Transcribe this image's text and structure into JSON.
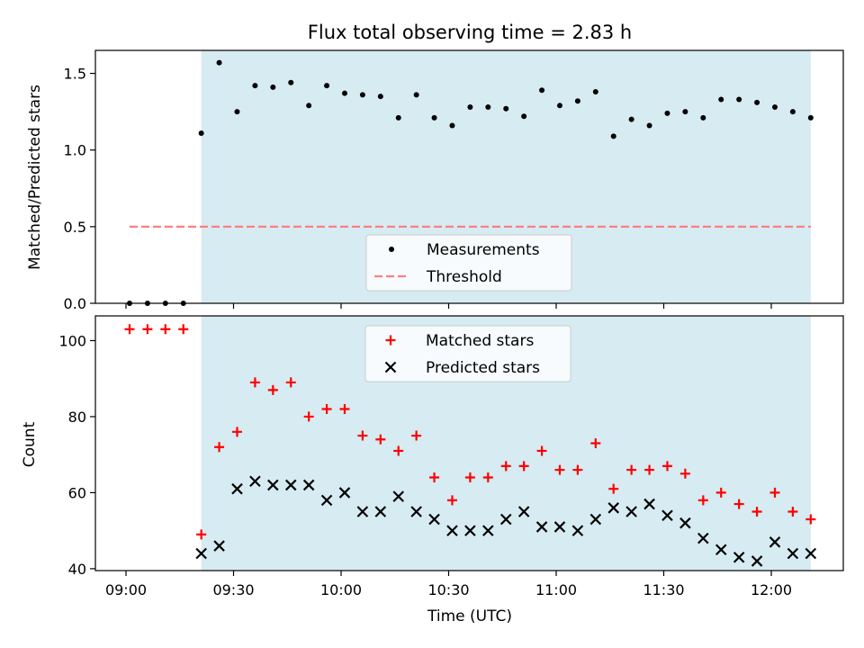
{
  "chart_data": [
    {
      "type": "scatter",
      "title": "Flux total observing time = 2.83 h",
      "xlabel": "",
      "ylabel": "Matched/Predicted stars",
      "ylim": [
        0.0,
        1.65
      ],
      "yticks": [
        "0.0",
        "0.5",
        "1.0",
        "1.5"
      ],
      "threshold": 0.5,
      "shaded_region_x": [
        "09:21",
        "12:11"
      ],
      "shaded_color": "#add8e6",
      "legend": {
        "placement": "lower-center",
        "entries": [
          "Measurements",
          "Threshold"
        ]
      },
      "series": [
        {
          "name": "Measurements",
          "color": "#000000",
          "x": [
            "09:01",
            "09:06",
            "09:11",
            "09:16",
            "09:21",
            "09:26",
            "09:31",
            "09:36",
            "09:41",
            "09:46",
            "09:51",
            "09:56",
            "10:01",
            "10:06",
            "10:11",
            "10:16",
            "10:21",
            "10:26",
            "10:31",
            "10:36",
            "10:41",
            "10:46",
            "10:51",
            "10:56",
            "11:01",
            "11:06",
            "11:11",
            "11:16",
            "11:21",
            "11:26",
            "11:31",
            "11:36",
            "11:41",
            "11:46",
            "11:51",
            "11:56",
            "12:01",
            "12:06",
            "12:11"
          ],
          "values": [
            0,
            0,
            0,
            0,
            1.11,
            1.57,
            1.25,
            1.42,
            1.41,
            1.44,
            1.29,
            1.42,
            1.37,
            1.36,
            1.35,
            1.21,
            1.36,
            1.21,
            1.16,
            1.28,
            1.28,
            1.27,
            1.22,
            1.39,
            1.29,
            1.32,
            1.38,
            1.09,
            1.2,
            1.16,
            1.24,
            1.25,
            1.21,
            1.33,
            1.33,
            1.31,
            1.28,
            1.25,
            1.21
          ]
        },
        {
          "name": "Threshold",
          "color": "#ff7f7f",
          "x": [
            "09:01",
            "12:11"
          ],
          "values": [
            0.5,
            0.5
          ]
        }
      ]
    },
    {
      "type": "scatter",
      "xlabel": "Time (UTC)",
      "ylabel": "Count",
      "ylim": [
        39.5,
        106.5
      ],
      "yticks": [
        "40",
        "60",
        "80",
        "100"
      ],
      "xticks": [
        "09:00",
        "09:30",
        "10:00",
        "10:30",
        "11:00",
        "11:30",
        "12:00"
      ],
      "shaded_region_x": [
        "09:21",
        "12:11"
      ],
      "shaded_color": "#add8e6",
      "legend": {
        "placement": "upper-center",
        "entries": [
          "Matched stars",
          "Predicted stars"
        ]
      },
      "series": [
        {
          "name": "Matched stars",
          "color": "#ff0000",
          "marker": "+",
          "x": [
            "09:01",
            "09:06",
            "09:11",
            "09:16",
            "09:21",
            "09:26",
            "09:31",
            "09:36",
            "09:41",
            "09:46",
            "09:51",
            "09:56",
            "10:01",
            "10:06",
            "10:11",
            "10:16",
            "10:21",
            "10:26",
            "10:31",
            "10:36",
            "10:41",
            "10:46",
            "10:51",
            "10:56",
            "11:01",
            "11:06",
            "11:11",
            "11:16",
            "11:21",
            "11:26",
            "11:31",
            "11:36",
            "11:41",
            "11:46",
            "11:51",
            "11:56",
            "12:01",
            "12:06",
            "12:11"
          ],
          "values": [
            103,
            103,
            103,
            103,
            49,
            72,
            76,
            89,
            87,
            89,
            80,
            82,
            82,
            75,
            74,
            71,
            75,
            64,
            58,
            64,
            64,
            67,
            67,
            71,
            66,
            66,
            73,
            61,
            66,
            66,
            67,
            65,
            58,
            60,
            57,
            55,
            60,
            55,
            53
          ]
        },
        {
          "name": "Predicted stars",
          "color": "#000000",
          "marker": "x",
          "x": [
            "09:21",
            "09:26",
            "09:31",
            "09:36",
            "09:41",
            "09:46",
            "09:51",
            "09:56",
            "10:01",
            "10:06",
            "10:11",
            "10:16",
            "10:21",
            "10:26",
            "10:31",
            "10:36",
            "10:41",
            "10:46",
            "10:51",
            "10:56",
            "11:01",
            "11:06",
            "11:11",
            "11:16",
            "11:21",
            "11:26",
            "11:31",
            "11:36",
            "11:41",
            "11:46",
            "11:51",
            "11:56",
            "12:01",
            "12:06",
            "12:11"
          ],
          "values": [
            44,
            46,
            61,
            63,
            62,
            62,
            62,
            58,
            60,
            55,
            55,
            59,
            55,
            53,
            50,
            50,
            50,
            53,
            55,
            51,
            51,
            50,
            53,
            56,
            55,
            57,
            54,
            52,
            48,
            45,
            43,
            42,
            47,
            44,
            44
          ]
        }
      ]
    }
  ]
}
